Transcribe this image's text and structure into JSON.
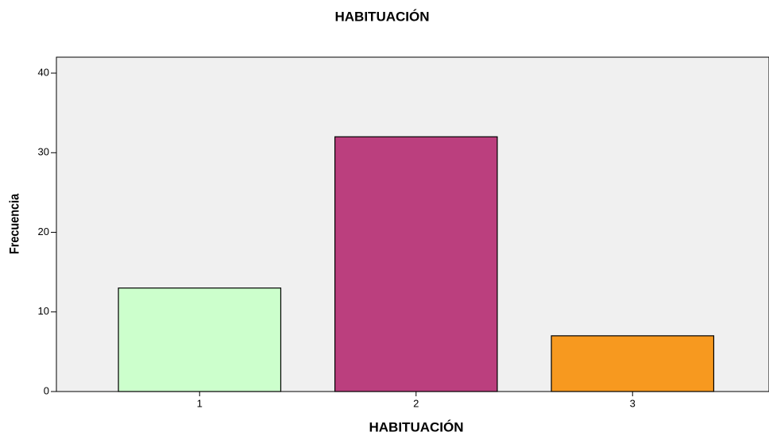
{
  "chart_data": {
    "type": "bar",
    "title": "HABITUACIÓN",
    "x_label": "HABITUACIÓN",
    "y_label": "Frecuencia",
    "categories": [
      "1",
      "2",
      "3"
    ],
    "values": [
      13,
      32,
      7
    ],
    "colors": [
      "#ccffcc",
      "#bb3f7e",
      "#f7991f"
    ],
    "ylim": [
      0,
      42
    ],
    "yticks": [
      0,
      10,
      20,
      30,
      40
    ],
    "grid": false
  }
}
